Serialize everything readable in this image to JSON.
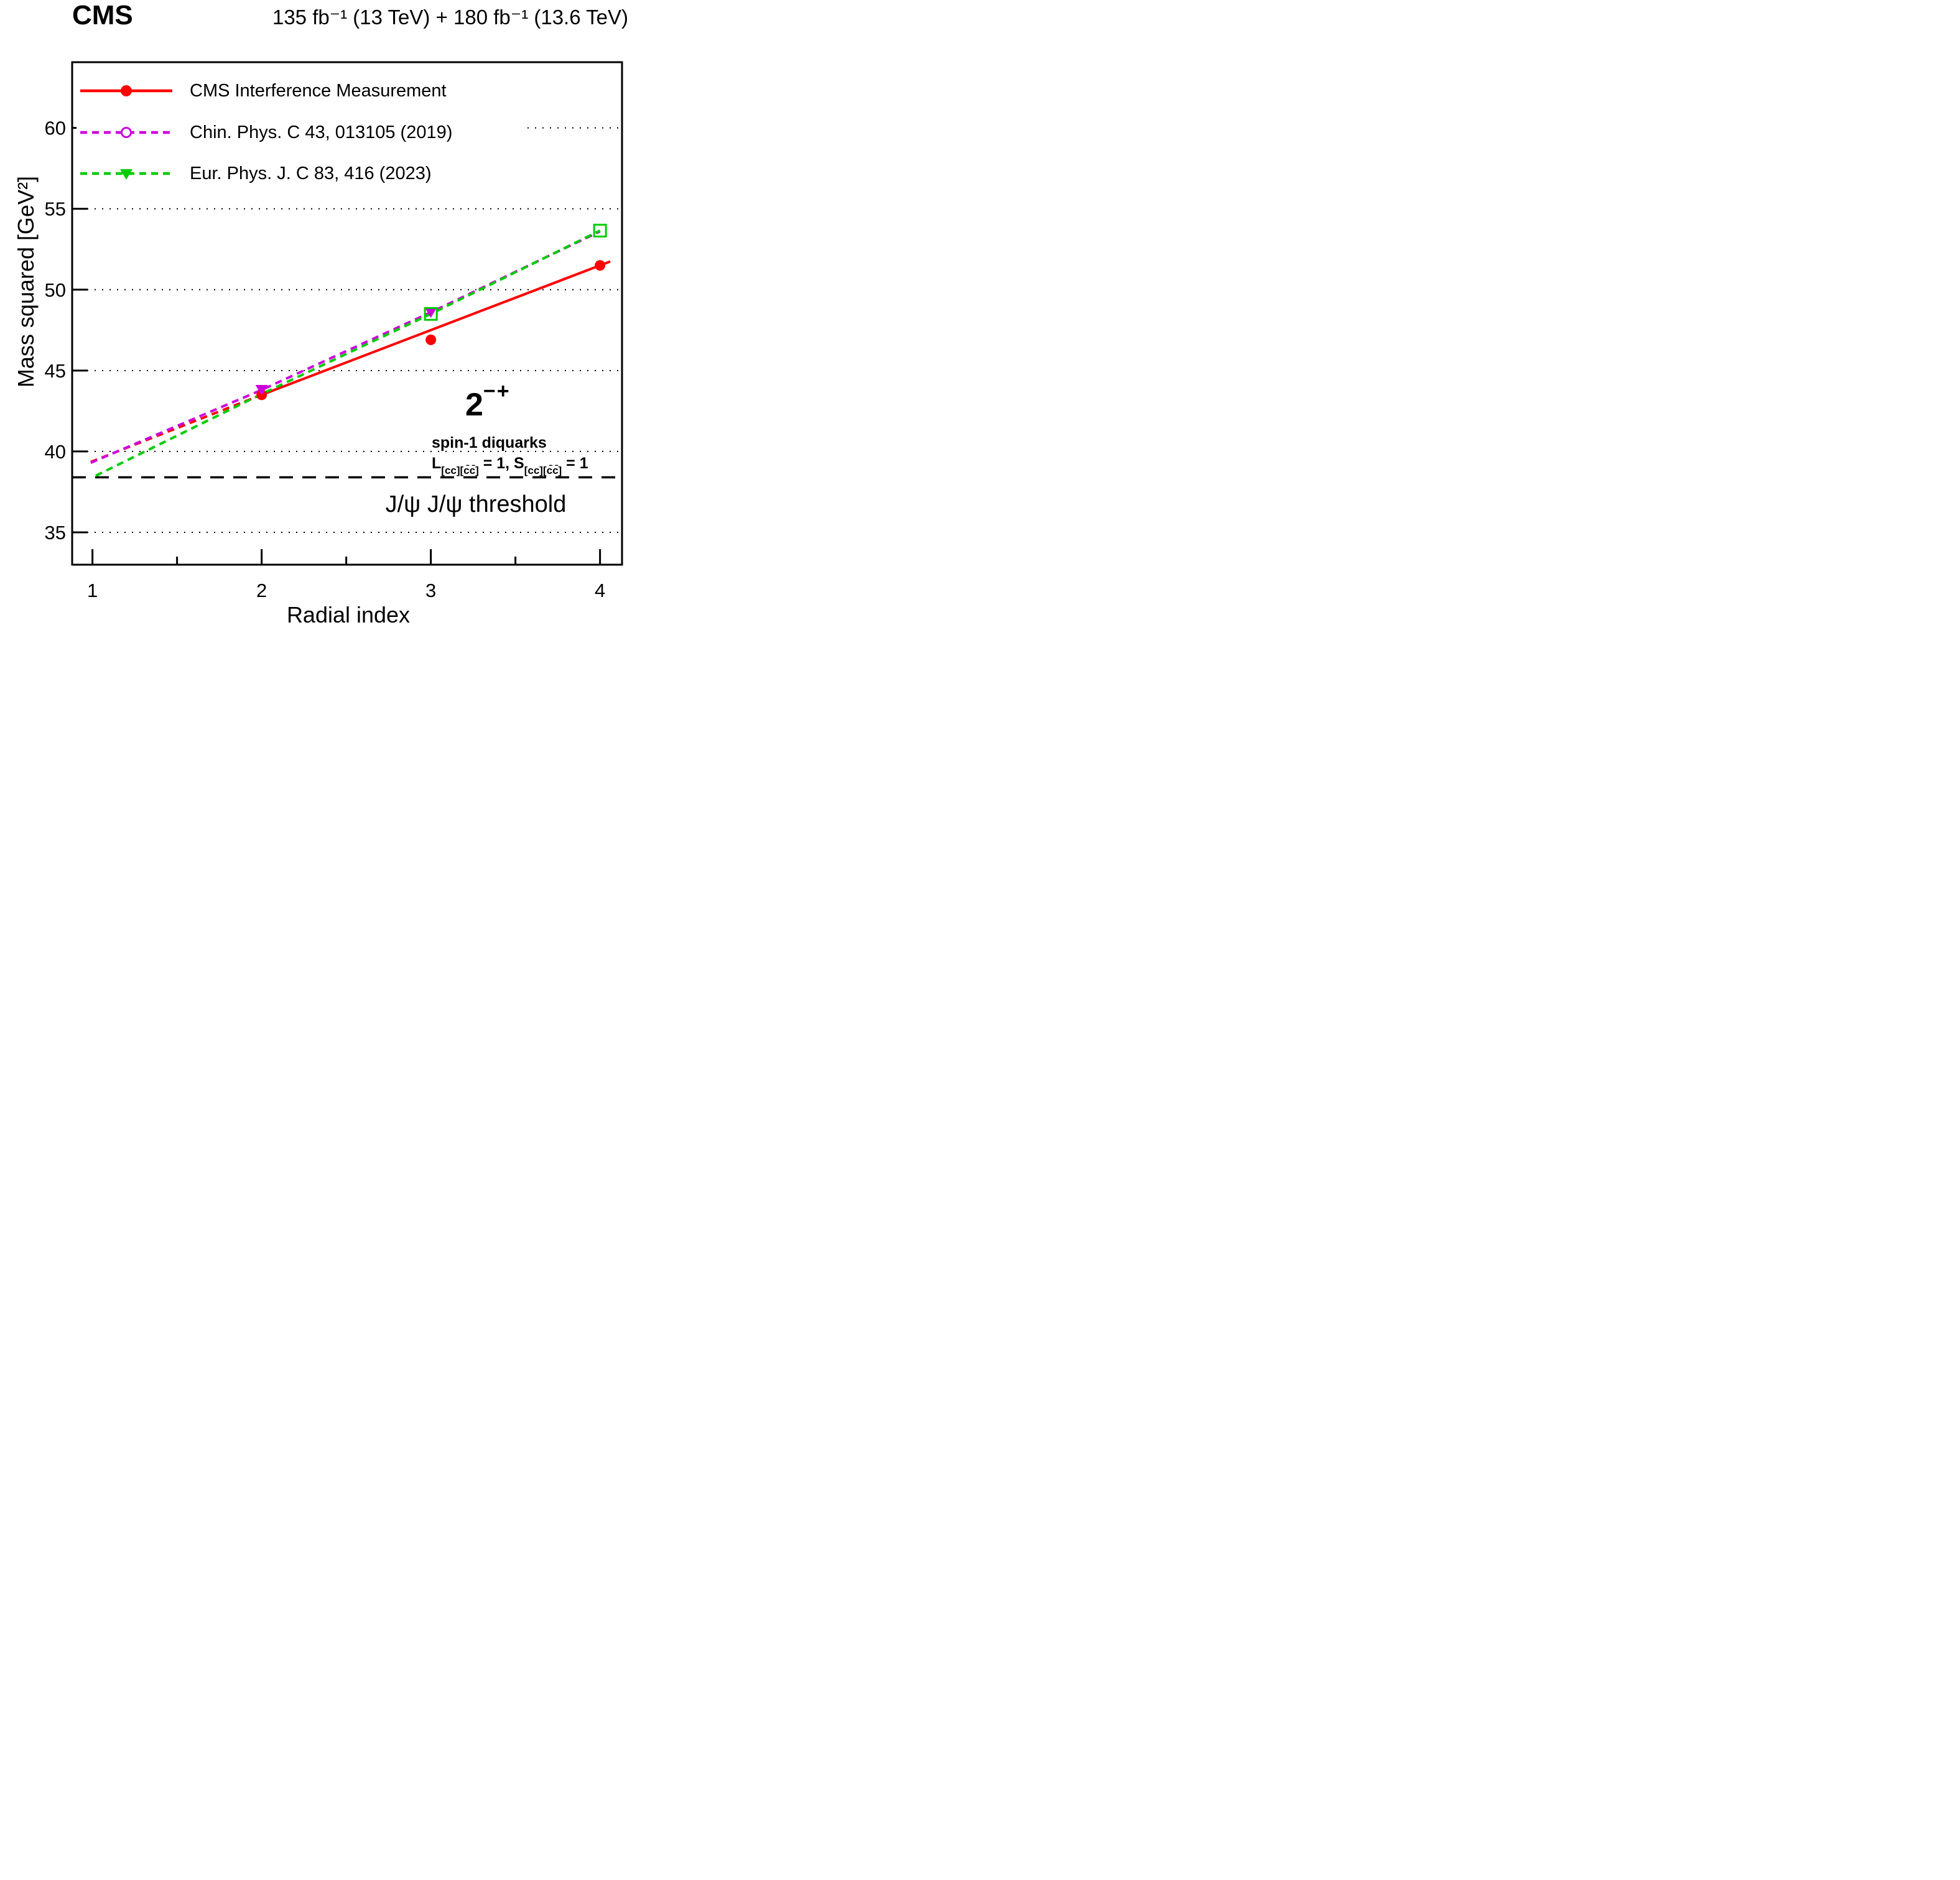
{
  "header": {
    "experiment": "CMS",
    "luminosity": "135 fb⁻¹ (13 TeV) + 180 fb⁻¹ (13.6 TeV)"
  },
  "annotations": {
    "jpc_base": "2",
    "jpc_sup": "−+",
    "spin": "spin-1 diquarks",
    "ls_l": "L",
    "ls_l_sub": "[cc][c̄c̄]",
    "ls_mid": " = 1, ",
    "ls_s": "S",
    "ls_s_sub": "[cc][c̄c̄]",
    "ls_end": " = 1"
  },
  "chart_data": {
    "type": "line",
    "title": "",
    "xlabel": "Radial index",
    "ylabel": "Mass squared [GeV²]",
    "xlim": [
      0.88,
      4.13
    ],
    "ylim": [
      33,
      64.06
    ],
    "x_ticks": [
      1,
      2,
      3,
      4
    ],
    "x_minor_ticks": [
      1.5,
      2.5,
      3.5
    ],
    "y_ticks": [
      35,
      40,
      45,
      50,
      55,
      60
    ],
    "grid": "horizontal dotted at each y tick",
    "legend_position": "top-left",
    "threshold": {
      "y": 38.4,
      "label": "J/ψ J/ψ threshold",
      "style": "dashed-black"
    },
    "series": [
      {
        "name": "CMS Interference Measurement",
        "color": "#ff0000",
        "line_style": "solid",
        "legend_marker": "filled-circle",
        "plot_marker": "filled-circle",
        "markers": [
          [
            2,
            43.5
          ],
          [
            3,
            46.9
          ],
          [
            4,
            51.5
          ]
        ],
        "line": [
          [
            2,
            43.5
          ],
          [
            4.06,
            51.74
          ]
        ],
        "extrapolation_style": "dashed",
        "extrapolation": [
          [
            0.99,
            39.35
          ],
          [
            2,
            43.5
          ]
        ]
      },
      {
        "name": "Chin. Phys. C 43, 013105 (2019)",
        "color": "#cc00dd",
        "line_style": "dashed",
        "legend_marker": "open-circle",
        "plot_marker": "filled-triangle-down",
        "markers": [
          [
            2,
            43.8
          ],
          [
            3,
            48.6
          ]
        ],
        "line": [
          [
            0.99,
            39.3
          ],
          [
            2,
            43.8
          ],
          [
            3,
            48.6
          ],
          [
            4,
            53.6
          ]
        ]
      },
      {
        "name": "Eur. Phys. J. C 83, 416 (2023)",
        "color": "#00cc00",
        "line_style": "dashed",
        "legend_marker": "filled-triangle-down",
        "plot_marker": "open-square",
        "markers": [
          [
            3,
            48.5
          ],
          [
            4,
            53.65
          ]
        ],
        "line": [
          [
            1.02,
            38.5
          ],
          [
            2,
            43.55
          ],
          [
            3,
            48.5
          ],
          [
            4,
            53.65
          ]
        ]
      }
    ]
  }
}
